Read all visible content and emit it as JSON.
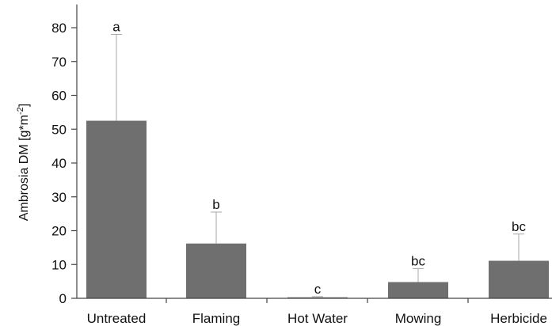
{
  "chart_data": {
    "type": "bar",
    "ylabel_parts": [
      "Ambrosia DM [g*m",
      "-2",
      "]"
    ],
    "categories": [
      "Untreated",
      "Flaming",
      "Hot Water",
      "Mowing",
      "Herbicide"
    ],
    "values": [
      52.5,
      16.2,
      0.3,
      4.8,
      11.1
    ],
    "error_upper": [
      78,
      25.5,
      0.5,
      8.8,
      19
    ],
    "significance": [
      "a",
      "b",
      "c",
      "bc",
      "bc"
    ],
    "yticks": [
      0,
      10,
      20,
      30,
      40,
      50,
      60,
      70,
      80
    ],
    "ylim": [
      0,
      85
    ],
    "grid": false,
    "colors": {
      "bar": "#6f6f6f",
      "axis": "#444444",
      "error": "#a8a8a8"
    }
  }
}
